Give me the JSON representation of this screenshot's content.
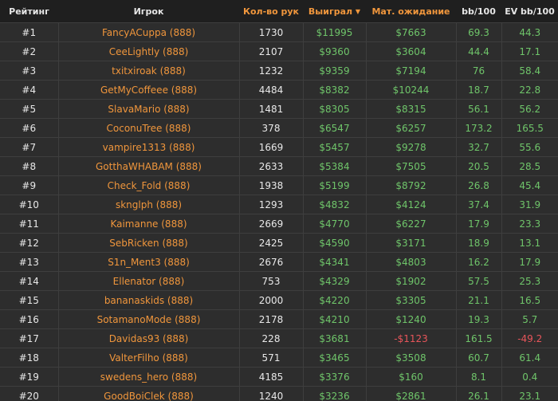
{
  "header": {
    "rank": "Рейтинг",
    "player": "Игрок",
    "hands": "Кол-во рук",
    "won": "Выиграл",
    "ev": "Мат. ожидание",
    "bb100": "bb/100",
    "evbb100": "EV bb/100",
    "sort_icon": "caret-down"
  },
  "colors": {
    "accent": "#f0963c",
    "positive": "#6fc56a",
    "negative": "#e8555a"
  },
  "rows": [
    {
      "rank": "#1",
      "player": "FancyACuppa (888)",
      "hands": "1730",
      "won": "$11995",
      "ev": "$7663",
      "bb100": "69.3",
      "evbb100": "44.3"
    },
    {
      "rank": "#2",
      "player": "CeeLightly (888)",
      "hands": "2107",
      "won": "$9360",
      "ev": "$3604",
      "bb100": "44.4",
      "evbb100": "17.1"
    },
    {
      "rank": "#3",
      "player": "txitxiroak (888)",
      "hands": "1232",
      "won": "$9359",
      "ev": "$7194",
      "bb100": "76",
      "evbb100": "58.4"
    },
    {
      "rank": "#4",
      "player": "GetMyCoffeee (888)",
      "hands": "4484",
      "won": "$8382",
      "ev": "$10244",
      "bb100": "18.7",
      "evbb100": "22.8"
    },
    {
      "rank": "#5",
      "player": "SlavaMario (888)",
      "hands": "1481",
      "won": "$8305",
      "ev": "$8315",
      "bb100": "56.1",
      "evbb100": "56.2"
    },
    {
      "rank": "#6",
      "player": "CoconuTree (888)",
      "hands": "378",
      "won": "$6547",
      "ev": "$6257",
      "bb100": "173.2",
      "evbb100": "165.5"
    },
    {
      "rank": "#7",
      "player": "vampire1313 (888)",
      "hands": "1669",
      "won": "$5457",
      "ev": "$9278",
      "bb100": "32.7",
      "evbb100": "55.6"
    },
    {
      "rank": "#8",
      "player": "GotthaWHABAM (888)",
      "hands": "2633",
      "won": "$5384",
      "ev": "$7505",
      "bb100": "20.5",
      "evbb100": "28.5"
    },
    {
      "rank": "#9",
      "player": "Check_Fold (888)",
      "hands": "1938",
      "won": "$5199",
      "ev": "$8792",
      "bb100": "26.8",
      "evbb100": "45.4"
    },
    {
      "rank": "#10",
      "player": "sknglph (888)",
      "hands": "1293",
      "won": "$4832",
      "ev": "$4124",
      "bb100": "37.4",
      "evbb100": "31.9"
    },
    {
      "rank": "#11",
      "player": "Kaimanne (888)",
      "hands": "2669",
      "won": "$4770",
      "ev": "$6227",
      "bb100": "17.9",
      "evbb100": "23.3"
    },
    {
      "rank": "#12",
      "player": "SebRicken (888)",
      "hands": "2425",
      "won": "$4590",
      "ev": "$3171",
      "bb100": "18.9",
      "evbb100": "13.1"
    },
    {
      "rank": "#13",
      "player": "S1n_Ment3 (888)",
      "hands": "2676",
      "won": "$4341",
      "ev": "$4803",
      "bb100": "16.2",
      "evbb100": "17.9"
    },
    {
      "rank": "#14",
      "player": "Ellenator (888)",
      "hands": "753",
      "won": "$4329",
      "ev": "$1902",
      "bb100": "57.5",
      "evbb100": "25.3"
    },
    {
      "rank": "#15",
      "player": "bananaskids (888)",
      "hands": "2000",
      "won": "$4220",
      "ev": "$3305",
      "bb100": "21.1",
      "evbb100": "16.5"
    },
    {
      "rank": "#16",
      "player": "SotamanoMode (888)",
      "hands": "2178",
      "won": "$4210",
      "ev": "$1240",
      "bb100": "19.3",
      "evbb100": "5.7"
    },
    {
      "rank": "#17",
      "player": "Davidas93 (888)",
      "hands": "228",
      "won": "$3681",
      "ev": "-$1123",
      "bb100": "161.5",
      "evbb100": "-49.2"
    },
    {
      "rank": "#18",
      "player": "ValterFilho (888)",
      "hands": "571",
      "won": "$3465",
      "ev": "$3508",
      "bb100": "60.7",
      "evbb100": "61.4"
    },
    {
      "rank": "#19",
      "player": "swedens_hero (888)",
      "hands": "4185",
      "won": "$3376",
      "ev": "$160",
      "bb100": "8.1",
      "evbb100": "0.4"
    },
    {
      "rank": "#20",
      "player": "GoodBoiClek (888)",
      "hands": "1240",
      "won": "$3236",
      "ev": "$2861",
      "bb100": "26.1",
      "evbb100": "23.1"
    }
  ]
}
